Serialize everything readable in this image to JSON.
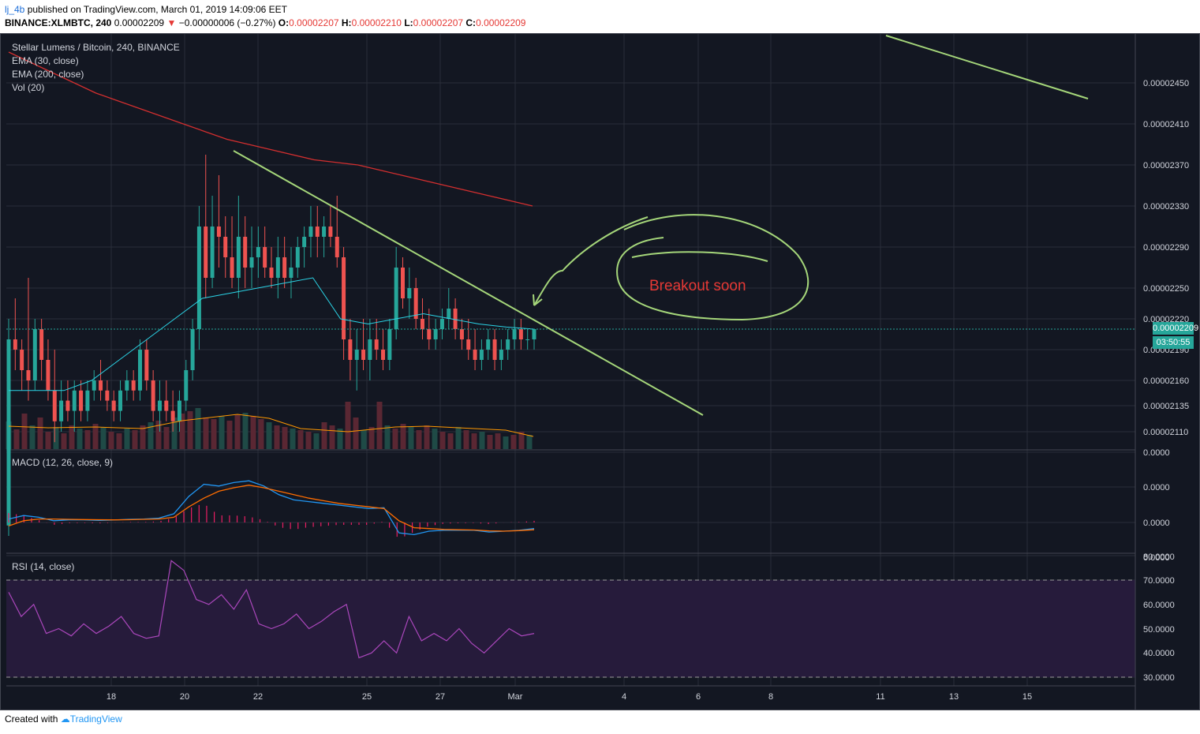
{
  "header": {
    "username": "lj_4b",
    "published_text": " published on TradingView.com, March 01, 2019 14:09:06 EET",
    "symbol_line": "BINANCE:XLMBTC, 240",
    "last_price": "0.00002209",
    "change": "−0.00000006 (−0.27%)",
    "o_label": "O:",
    "o_value": "0.00002207",
    "h_label": "H:",
    "h_value": "0.00002210",
    "l_label": "L:",
    "l_value": "0.00002207",
    "c_label": "C:",
    "c_value": "0.00002209"
  },
  "legend": {
    "title": "Stellar Lumens / Bitcoin, 240, BINANCE",
    "ema30": "EMA (30, close)",
    "ema200": "EMA (200, close)",
    "vol": "Vol (20)",
    "macd": "MACD (12, 26, close, 9)",
    "rsi": "RSI (14, close)"
  },
  "annotation": {
    "text": "Breakout soon"
  },
  "price_tag": {
    "value": "0.00002209",
    "countdown": "03:50:55"
  },
  "footer": {
    "created_with": "Created with",
    "brand": "TradingView"
  },
  "colors": {
    "background": "#131722",
    "up": "#26a69a",
    "down": "#ef5350",
    "ema30": "#2bd4e6",
    "ema200": "#d32f2f",
    "trendline": "#a5d67a",
    "annotation_text": "#e53935",
    "macd": "#2196f3",
    "signal": "#ff6d00",
    "rsi": "#ab47bc",
    "rsi_band": "#261b3b"
  },
  "chart_data": {
    "type": "candlestick",
    "symbol": "XLMBTC",
    "timeframe": "240",
    "x_ticks": [
      "18",
      "20",
      "22",
      "25",
      "27",
      "Mar",
      "4",
      "6",
      "8",
      "11",
      "13",
      "15"
    ],
    "price_axis": {
      "ticks": [
        "0.00002450",
        "0.00002410",
        "0.00002370",
        "0.00002330",
        "0.00002290",
        "0.00002250",
        "0.00002220",
        "0.00002190",
        "0.00002160",
        "0.00002135",
        "0.00002110",
        "0.0000"
      ],
      "last": "0.00002209"
    },
    "macd_axis": {
      "ticks": [
        "0.0000",
        "0.0000",
        "0.0000"
      ]
    },
    "rsi_axis": {
      "ticks": [
        "80.0000",
        "70.0000",
        "60.0000",
        "50.0000",
        "40.0000",
        "30.0000"
      ],
      "band": [
        30,
        70
      ]
    },
    "candles_ohlc": [
      [
        2.02e-05,
        2.22e-05,
        2.01e-05,
        2.2e-05
      ],
      [
        2.2e-05,
        2.24e-05,
        2.17e-05,
        2.19e-05
      ],
      [
        2.19e-05,
        2.2e-05,
        2.15e-05,
        2.17e-05
      ],
      [
        2.17e-05,
        2.26e-05,
        2.14e-05,
        2.16e-05
      ],
      [
        2.16e-05,
        2.22e-05,
        2.15e-05,
        2.21e-05
      ],
      [
        2.21e-05,
        2.22e-05,
        2.16e-05,
        2.18e-05
      ],
      [
        2.18e-05,
        2.2e-05,
        2.14e-05,
        2.15e-05
      ],
      [
        2.15e-05,
        2.19e-05,
        2.1e-05,
        2.12e-05
      ],
      [
        2.12e-05,
        2.16e-05,
        2.11e-05,
        2.14e-05
      ],
      [
        2.14e-05,
        2.16e-05,
        2.12e-05,
        2.13e-05
      ],
      [
        2.13e-05,
        2.16e-05,
        2.11e-05,
        2.15e-05
      ],
      [
        2.15e-05,
        2.16e-05,
        2.12e-05,
        2.13e-05
      ],
      [
        2.13e-05,
        2.16e-05,
        2.12e-05,
        2.15e-05
      ],
      [
        2.15e-05,
        2.17e-05,
        2.14e-05,
        2.16e-05
      ],
      [
        2.16e-05,
        2.18e-05,
        2.14e-05,
        2.15e-05
      ],
      [
        2.15e-05,
        2.16e-05,
        2.13e-05,
        2.14e-05
      ],
      [
        2.14e-05,
        2.15e-05,
        2.12e-05,
        2.13e-05
      ],
      [
        2.13e-05,
        2.16e-05,
        2.12e-05,
        2.15e-05
      ],
      [
        2.15e-05,
        2.17e-05,
        2.14e-05,
        2.16e-05
      ],
      [
        2.16e-05,
        2.17e-05,
        2.14e-05,
        2.15e-05
      ],
      [
        2.15e-05,
        2.2e-05,
        2.14e-05,
        2.19e-05
      ],
      [
        2.19e-05,
        2.2e-05,
        2.15e-05,
        2.16e-05
      ],
      [
        2.16e-05,
        2.17e-05,
        2.12e-05,
        2.13e-05
      ],
      [
        2.13e-05,
        2.16e-05,
        2.11e-05,
        2.14e-05
      ],
      [
        2.14e-05,
        2.16e-05,
        2.12e-05,
        2.13e-05
      ],
      [
        2.13e-05,
        2.15e-05,
        2.11e-05,
        2.12e-05
      ],
      [
        2.12e-05,
        2.15e-05,
        2.11e-05,
        2.14e-05
      ],
      [
        2.14e-05,
        2.18e-05,
        2.13e-05,
        2.17e-05
      ],
      [
        2.17e-05,
        2.22e-05,
        2.16e-05,
        2.21e-05
      ],
      [
        2.21e-05,
        2.33e-05,
        2.19e-05,
        2.31e-05
      ],
      [
        2.31e-05,
        2.38e-05,
        2.24e-05,
        2.26e-05
      ],
      [
        2.26e-05,
        2.34e-05,
        2.25e-05,
        2.31e-05
      ],
      [
        2.31e-05,
        2.36e-05,
        2.27e-05,
        2.3e-05
      ],
      [
        2.3e-05,
        2.32e-05,
        2.26e-05,
        2.28e-05
      ],
      [
        2.28e-05,
        2.32e-05,
        2.25e-05,
        2.26e-05
      ],
      [
        2.26e-05,
        2.34e-05,
        2.24e-05,
        2.3e-05
      ],
      [
        2.3e-05,
        2.32e-05,
        2.25e-05,
        2.27e-05
      ],
      [
        2.27e-05,
        2.31e-05,
        2.25e-05,
        2.28e-05
      ],
      [
        2.28e-05,
        2.31e-05,
        2.26e-05,
        2.29e-05
      ],
      [
        2.29e-05,
        2.31e-05,
        2.26e-05,
        2.27e-05
      ],
      [
        2.27e-05,
        2.29e-05,
        2.25e-05,
        2.26e-05
      ],
      [
        2.26e-05,
        2.3e-05,
        2.24e-05,
        2.28e-05
      ],
      [
        2.28e-05,
        2.3e-05,
        2.25e-05,
        2.26e-05
      ],
      [
        2.26e-05,
        2.29e-05,
        2.24e-05,
        2.27e-05
      ],
      [
        2.27e-05,
        2.3e-05,
        2.26e-05,
        2.29e-05
      ],
      [
        2.29e-05,
        2.31e-05,
        2.27e-05,
        2.3e-05
      ],
      [
        2.3e-05,
        2.33e-05,
        2.28e-05,
        2.31e-05
      ],
      [
        2.31e-05,
        2.33e-05,
        2.28e-05,
        2.3e-05
      ],
      [
        2.3e-05,
        2.32e-05,
        2.28e-05,
        2.31e-05
      ],
      [
        2.31e-05,
        2.33e-05,
        2.29e-05,
        2.3e-05
      ],
      [
        2.3e-05,
        2.34e-05,
        2.27e-05,
        2.28e-05
      ],
      [
        2.28e-05,
        2.29e-05,
        2.18e-05,
        2.2e-05
      ],
      [
        2.2e-05,
        2.22e-05,
        2.16e-05,
        2.18e-05
      ],
      [
        2.18e-05,
        2.21e-05,
        2.15e-05,
        2.19e-05
      ],
      [
        2.19e-05,
        2.22e-05,
        2.17e-05,
        2.18e-05
      ],
      [
        2.18e-05,
        2.22e-05,
        2.16e-05,
        2.2e-05
      ],
      [
        2.2e-05,
        2.22e-05,
        2.18e-05,
        2.19e-05
      ],
      [
        2.19e-05,
        2.21e-05,
        2.17e-05,
        2.18e-05
      ],
      [
        2.18e-05,
        2.22e-05,
        2.17e-05,
        2.21e-05
      ],
      [
        2.21e-05,
        2.29e-05,
        2.2e-05,
        2.27e-05
      ],
      [
        2.27e-05,
        2.28e-05,
        2.23e-05,
        2.24e-05
      ],
      [
        2.24e-05,
        2.27e-05,
        2.22e-05,
        2.25e-05
      ],
      [
        2.25e-05,
        2.26e-05,
        2.21e-05,
        2.22e-05
      ],
      [
        2.22e-05,
        2.24e-05,
        2.2e-05,
        2.21e-05
      ],
      [
        2.21e-05,
        2.23e-05,
        2.19e-05,
        2.2e-05
      ],
      [
        2.2e-05,
        2.22e-05,
        2.19e-05,
        2.21e-05
      ],
      [
        2.21e-05,
        2.23e-05,
        2.2e-05,
        2.22e-05
      ],
      [
        2.22e-05,
        2.25e-05,
        2.21e-05,
        2.23e-05
      ],
      [
        2.23e-05,
        2.24e-05,
        2.2e-05,
        2.21e-05
      ],
      [
        2.21e-05,
        2.22e-05,
        2.19e-05,
        2.2e-05
      ],
      [
        2.2e-05,
        2.22e-05,
        2.18e-05,
        2.19e-05
      ],
      [
        2.19e-05,
        2.21e-05,
        2.17e-05,
        2.18e-05
      ],
      [
        2.18e-05,
        2.2e-05,
        2.17e-05,
        2.19e-05
      ],
      [
        2.19e-05,
        2.21e-05,
        2.18e-05,
        2.2e-05
      ],
      [
        2.2e-05,
        2.21e-05,
        2.17e-05,
        2.18e-05
      ],
      [
        2.18e-05,
        2.2e-05,
        2.17e-05,
        2.19e-05
      ],
      [
        2.19e-05,
        2.21e-05,
        2.18e-05,
        2.2e-05
      ],
      [
        2.2e-05,
        2.22e-05,
        2.19e-05,
        2.21e-05
      ],
      [
        2.21e-05,
        2.22e-05,
        2.19e-05,
        2.2e-05
      ],
      [
        2.2e-05,
        2.21e-05,
        2.19e-05,
        2.2e-05
      ],
      [
        2.2e-05,
        2.21e-05,
        2.19e-05,
        2.21e-05
      ]
    ],
    "ema30": [
      2.15e-05,
      2.15e-05,
      2.15e-05,
      2.16e-05,
      2.18e-05,
      2.2e-05,
      2.22e-05,
      2.24e-05,
      2.245e-05,
      2.25e-05,
      2.255e-05,
      2.26e-05,
      2.22e-05,
      2.215e-05,
      2.22e-05,
      2.225e-05,
      2.22e-05,
      2.215e-05,
      2.212e-05,
      2.21e-05
    ],
    "ema200": [
      2.48e-05,
      2.46e-05,
      2.44e-05,
      2.425e-05,
      2.41e-05,
      2.395e-05,
      2.385e-05,
      2.375e-05,
      2.37e-05,
      2.36e-05,
      2.35e-05,
      2.34e-05,
      2.33e-05
    ],
    "volume": [
      35,
      25,
      45,
      30,
      40,
      22,
      28,
      20,
      30,
      26,
      24,
      32,
      28,
      22,
      20,
      26,
      24,
      30,
      34,
      36,
      28,
      40,
      45,
      48,
      52,
      40,
      38,
      42,
      36,
      44,
      46,
      42,
      38,
      34,
      30,
      28,
      26,
      24,
      22,
      20,
      34,
      30,
      26,
      60,
      40,
      24,
      28,
      60,
      30,
      26,
      32,
      28,
      24,
      30,
      26,
      22,
      20,
      28,
      24,
      20,
      22,
      18,
      20,
      16,
      18,
      22,
      18
    ],
    "macd": [
      0.2,
      0.4,
      0.3,
      0.1,
      0.15,
      0.15,
      0.12,
      0.14,
      0.18,
      0.2,
      0.25,
      0.5,
      1.5,
      2.2,
      2.1,
      2.3,
      2.4,
      2.1,
      1.6,
      1.3,
      1.2,
      1.1,
      1.0,
      0.9,
      0.8,
      0.85,
      -0.6,
      -0.7,
      -0.5,
      -0.45,
      -0.45,
      -0.45,
      -0.55,
      -0.5,
      -0.45,
      -0.35
    ],
    "signal": [
      -0.2,
      0.1,
      0.2,
      0.2,
      0.18,
      0.17,
      0.16,
      0.15,
      0.16,
      0.18,
      0.2,
      0.3,
      0.9,
      1.4,
      1.8,
      2.0,
      2.15,
      2.0,
      1.8,
      1.6,
      1.4,
      1.25,
      1.1,
      1.0,
      0.9,
      0.8,
      0.1,
      -0.3,
      -0.35,
      -0.4,
      -0.42,
      -0.43,
      -0.48,
      -0.5,
      -0.47,
      -0.42
    ],
    "rsi": [
      65,
      55,
      60,
      48,
      50,
      47,
      52,
      48,
      51,
      55,
      48,
      46,
      47,
      78,
      74,
      62,
      60,
      64,
      58,
      66,
      52,
      50,
      52,
      56,
      50,
      53,
      57,
      60,
      38,
      40,
      45,
      40,
      55,
      45,
      48,
      45,
      50,
      44,
      40,
      45,
      50,
      47,
      48
    ]
  }
}
